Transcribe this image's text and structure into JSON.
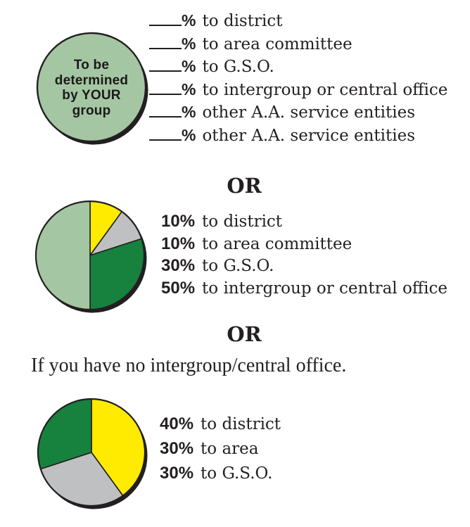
{
  "colors": {
    "sage": "#A5C6A2",
    "yellow": "#FFEB00",
    "gray": "#BFC0C2",
    "green": "#17813E",
    "ink": "#231F20"
  },
  "labels": {
    "percent": "%",
    "or_first": "OR",
    "or_second": "OR",
    "no_intergroup_note": "If you have no intergroup/central office."
  },
  "chart_data": [
    {
      "type": "pie",
      "title": "To be determined by YOUR group",
      "circle_lines": [
        "To be",
        "determined",
        "by YOUR",
        "group"
      ],
      "circle_color_key": "sage",
      "slices": [
        {
          "pct_display": "",
          "value": null,
          "label": "to district"
        },
        {
          "pct_display": "",
          "value": null,
          "label": "to area committee"
        },
        {
          "pct_display": "",
          "value": null,
          "label": "to G.S.O."
        },
        {
          "pct_display": "",
          "value": null,
          "label": "to intergroup or central office"
        },
        {
          "pct_display": "",
          "value": null,
          "label": "other A.A. service entities"
        },
        {
          "pct_display": "",
          "value": null,
          "label": "other A.A. service entities"
        }
      ]
    },
    {
      "type": "pie",
      "title": "",
      "slices": [
        {
          "pct_display": "10%",
          "value": 10,
          "label": "to district",
          "color_key": "yellow"
        },
        {
          "pct_display": "10%",
          "value": 10,
          "label": "to area committee",
          "color_key": "gray"
        },
        {
          "pct_display": "30%",
          "value": 30,
          "label": "to G.S.O.",
          "color_key": "green"
        },
        {
          "pct_display": "50%",
          "value": 50,
          "label": "to intergroup or central office",
          "color_key": "sage"
        }
      ]
    },
    {
      "type": "pie",
      "title": "",
      "slices": [
        {
          "pct_display": "40%",
          "value": 40,
          "label": "to district",
          "color_key": "yellow"
        },
        {
          "pct_display": "30%",
          "value": 30,
          "label": "to area",
          "color_key": "gray"
        },
        {
          "pct_display": "30%",
          "value": 30,
          "label": "to G.S.O.",
          "color_key": "green"
        }
      ]
    }
  ]
}
